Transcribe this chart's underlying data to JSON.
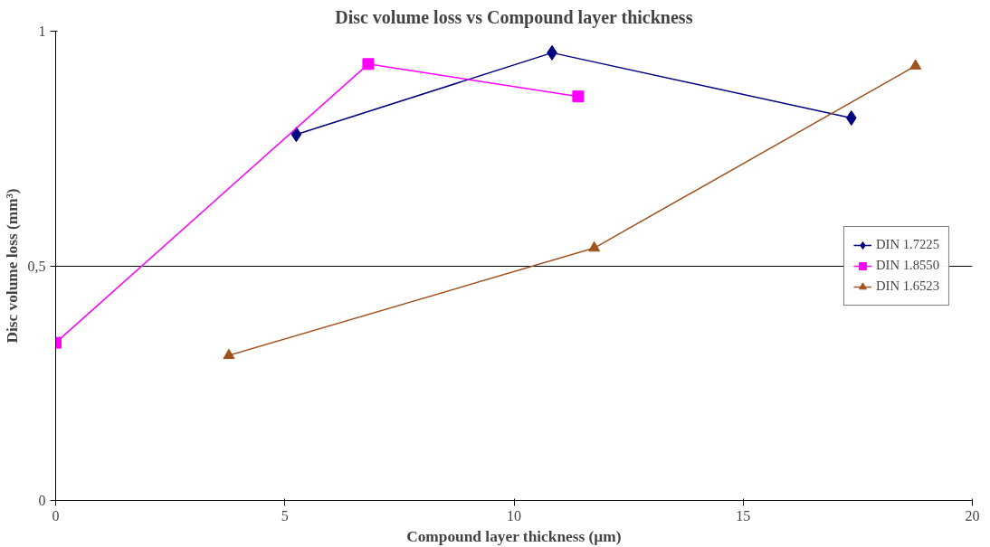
{
  "chart_data": {
    "type": "line",
    "title": "Disc volume loss vs Compound layer thickness",
    "xlabel": "Compound layer thickness (µm)",
    "ylabel": "Disc volume loss (mm³)",
    "xlim": [
      0,
      20
    ],
    "xticks": [
      0,
      5,
      10,
      15,
      20
    ],
    "ylim": [
      0,
      1
    ],
    "yticks": [
      0,
      {
        "value": 0.5,
        "label": "0,5"
      },
      1
    ],
    "grid": "y",
    "legend": "right",
    "series": [
      {
        "name": "DIN 1.7225",
        "color": "#000080",
        "marker": "diamond",
        "x": [
          5.25,
          10.83,
          17.36
        ],
        "values": [
          0.78,
          0.954,
          0.815
        ]
      },
      {
        "name": "DIN 1.8550",
        "color": "#ff00ff",
        "marker": "square",
        "x": [
          0,
          6.82,
          11.4
        ],
        "values": [
          0.336,
          0.93,
          0.861
        ]
      },
      {
        "name": "DIN 1.6523",
        "color": "#a0521e",
        "marker": "triangle",
        "x": [
          3.78,
          11.75,
          18.76
        ],
        "values": [
          0.309,
          0.538,
          0.926
        ]
      }
    ]
  }
}
